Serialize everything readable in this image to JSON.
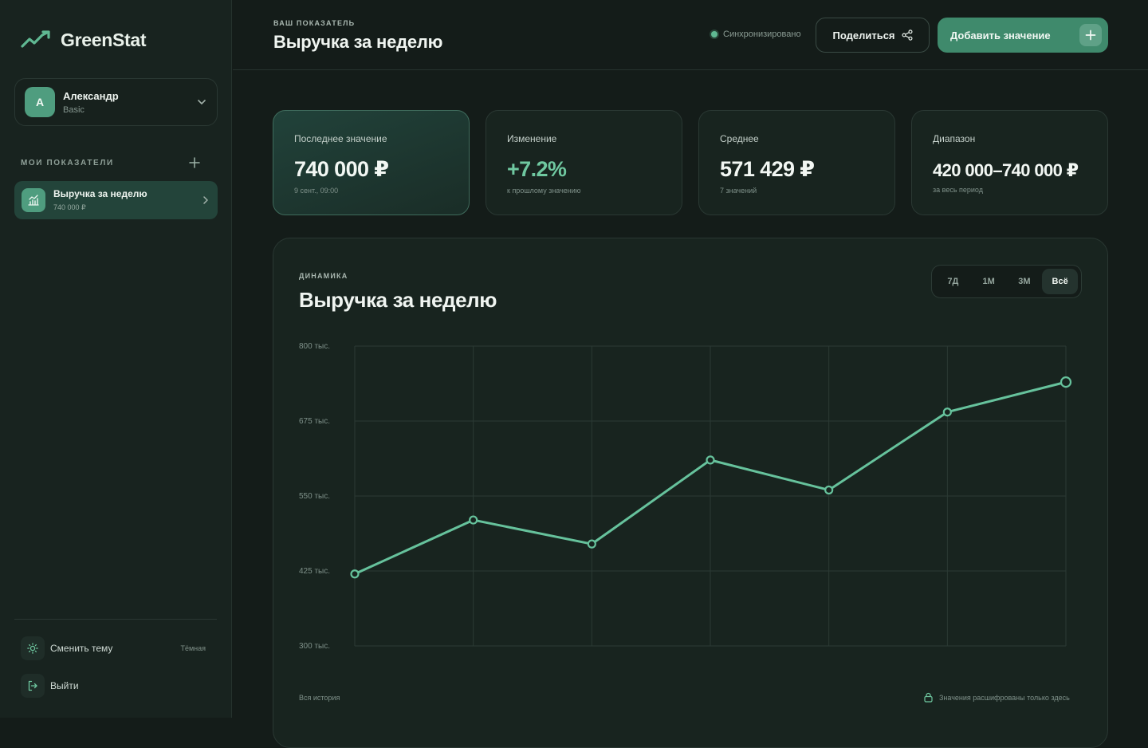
{
  "sidebar": {
    "brand": "GreenStat",
    "user": {
      "initial": "A",
      "name": "Александр",
      "plan": "Basic"
    },
    "section_title": "МОИ ПОКАЗАТЕЛИ",
    "items": [
      {
        "title": "Выручка за неделю",
        "value": "740 000 ₽"
      }
    ],
    "theme_label": "Сменить тему",
    "theme_badge": "Тёмная",
    "logout_label": "Выйти"
  },
  "header": {
    "eyebrow": "ВАШ ПОКАЗАТЕЛЬ",
    "title": "Выручка за неделю",
    "sync_status": "Синхронизировано",
    "share_label": "Поделиться",
    "add_label": "Добавить значение"
  },
  "stats": [
    {
      "label": "Последнее значение",
      "value": "740 000 ₽",
      "sub": "9 сент., 09:00"
    },
    {
      "label": "Изменение",
      "value": "+7.2%",
      "sub": "к прошлому значению"
    },
    {
      "label": "Среднее",
      "value": "571 429 ₽",
      "sub": "7 значений"
    },
    {
      "label": "Диапазон",
      "value": "420 000–740 000 ₽",
      "sub": "за весь период"
    }
  ],
  "chart": {
    "eyebrow": "ДИНАМИКА",
    "title": "Выручка за неделю",
    "ranges": [
      "7Д",
      "1М",
      "3М",
      "Всё"
    ],
    "active_range": "Всё",
    "footer_left": "Вся история",
    "footer_right": "Значения расшифрованы только здесь"
  },
  "chart_data": {
    "type": "line",
    "title": "Выручка за неделю",
    "xlabel": "",
    "ylabel": "",
    "ylim": [
      300000,
      800000
    ],
    "y_ticks": [
      300000,
      425000,
      550000,
      675000,
      800000
    ],
    "y_tick_labels": [
      "300 тыс.",
      "425 тыс.",
      "550 тыс.",
      "675 тыс.",
      "800 тыс."
    ],
    "grid": true,
    "values": [
      420000,
      510000,
      470000,
      610000,
      560000,
      690000,
      740000
    ],
    "colors": {
      "line": "#66c29c",
      "grid": "#2b3a34",
      "point_fill": "#18241f"
    }
  }
}
